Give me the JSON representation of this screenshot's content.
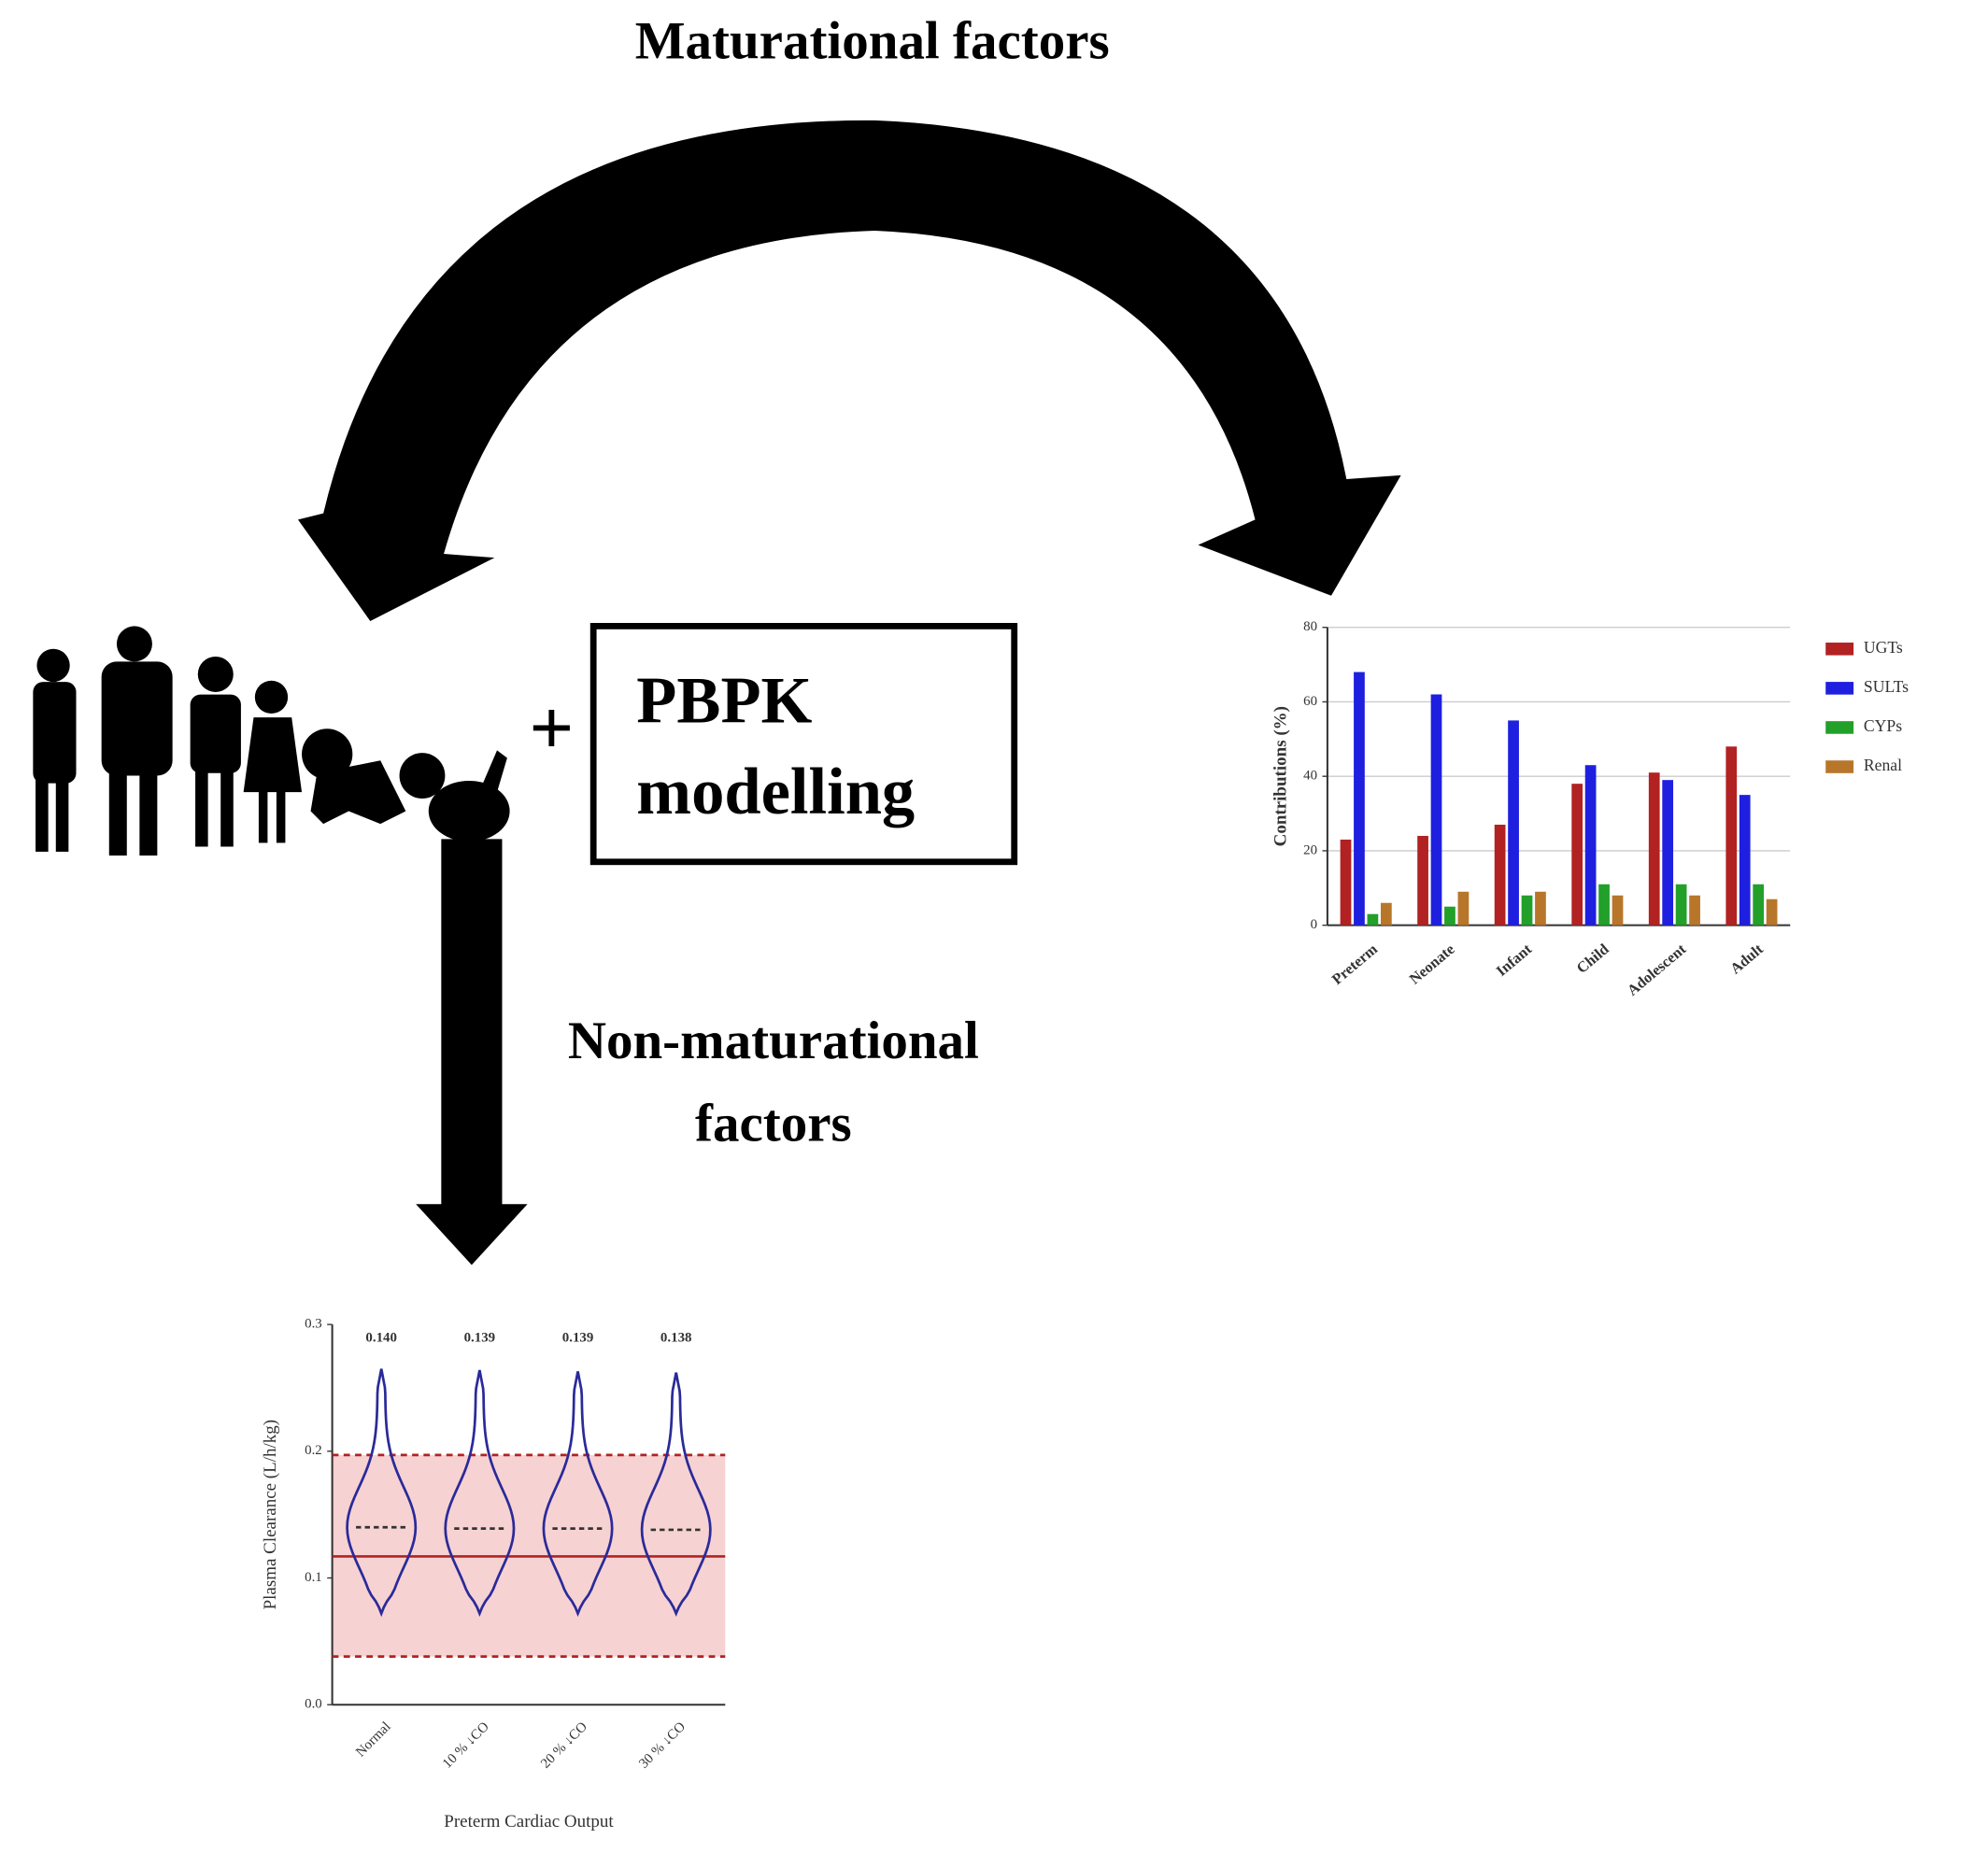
{
  "title": "Maturational factors",
  "plus": "+",
  "box_lines": [
    "PBPK",
    "modelling"
  ],
  "arrow_label_lines": [
    "Non-maturational",
    "factors"
  ],
  "chart_data": [
    {
      "type": "bar",
      "y_label": "Contributions (%)",
      "categories": [
        "Preterm",
        "Neonate",
        "Infant",
        "Child",
        "Adolescent",
        "Adult"
      ],
      "series": [
        {
          "name": "UGTs",
          "color": "#b22222",
          "values": [
            23,
            24,
            27,
            38,
            41,
            48
          ]
        },
        {
          "name": "SULTs",
          "color": "#1f1fe0",
          "values": [
            68,
            62,
            55,
            43,
            39,
            35
          ]
        },
        {
          "name": "CYPs",
          "color": "#22a02a",
          "values": [
            3,
            5,
            8,
            11,
            11,
            11
          ]
        },
        {
          "name": "Renal",
          "color": "#b8762a",
          "values": [
            6,
            9,
            9,
            8,
            8,
            7
          ]
        }
      ],
      "ylim": [
        0,
        80
      ],
      "yticks": [
        0,
        20,
        40,
        60,
        80
      ],
      "grid": true,
      "legend": "right"
    },
    {
      "type": "violin",
      "x_label": "Preterm Cardiac Output",
      "y_label": "Plasma Clearance (L/h/kg)",
      "categories": [
        "Normal",
        "10 % ↓CO",
        "20 % ↓CO",
        "30 % ↓CO"
      ],
      "values": [
        0.14,
        0.139,
        0.139,
        0.138
      ],
      "value_labels": [
        "0.140",
        "0.139",
        "0.139",
        "0.138"
      ],
      "min": [
        0.072,
        0.072,
        0.072,
        0.072
      ],
      "max": [
        0.265,
        0.264,
        0.263,
        0.262
      ],
      "color": "#2a2a9a",
      "reference_line": 0.117,
      "band": [
        0.038,
        0.197
      ],
      "band_color": "#f6d2d2",
      "line_color": "#b22222",
      "ylim": [
        0,
        0.3
      ],
      "yticks": [
        {
          "value": 0,
          "label": "0.0"
        },
        0.1,
        0.2,
        0.3
      ]
    }
  ]
}
